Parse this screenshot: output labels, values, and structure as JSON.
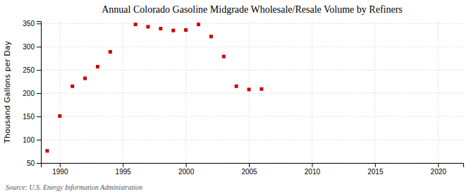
{
  "chart_data": {
    "type": "scatter",
    "title": "Annual Colorado Gasoline Midgrade Wholesale/Resale Volume by Refiners",
    "ylabel": "Thousand Gallons per Day",
    "annotations": [
      "Source: U.S. Energy Information Administration"
    ],
    "x": [
      1989,
      1990,
      1991,
      1992,
      1993,
      1994,
      1996,
      1997,
      1998,
      1999,
      2000,
      2001,
      2002,
      2003,
      2004,
      2005,
      2006
    ],
    "values": [
      76,
      151,
      215,
      232,
      257,
      289,
      348,
      343,
      339,
      335,
      336,
      348,
      322,
      279,
      215,
      208,
      209
    ],
    "color": "#cc0000",
    "marker": "square",
    "xlim": [
      1988.5,
      2022
    ],
    "xticks": [
      1990,
      1995,
      2000,
      2005,
      2010,
      2015,
      2020
    ],
    "ylim": [
      50,
      355
    ],
    "yticks": [
      50,
      100,
      150,
      200,
      250,
      300,
      350
    ],
    "grid": true
  }
}
